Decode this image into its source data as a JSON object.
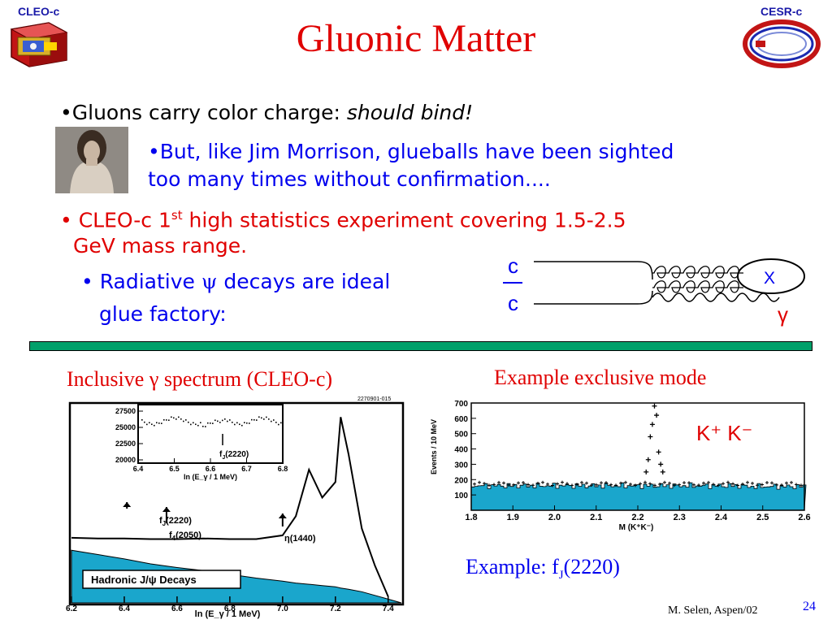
{
  "logos": {
    "left_label": "CLEO-c",
    "right_label": "CESR-c"
  },
  "title": "Gluonic Matter",
  "bullets": {
    "b1_prefix": "•Gluons carry color charge: ",
    "b1_italic": "should bind!",
    "b2_line1": "•But, like Jim Morrison, glueballs have been sighted",
    "b2_line2": "too many times without confirmation....",
    "b3_prefix": "• CLEO-c 1",
    "b3_sup": "st",
    "b3_rest": " high statistics experiment covering 1.5-2.5",
    "b3_line2": "GeV mass range.",
    "b4_prefix": "• Radiative ",
    "b4_greek": "ψ",
    "b4_rest": " decays are ideal",
    "b4_line2": "glue factory:"
  },
  "feynman": {
    "quark": "c",
    "antiquark": "c",
    "product": "X",
    "photon": "γ"
  },
  "left_panel": {
    "caption_prefix": "Inclusive ",
    "caption_greek": "γ",
    "caption_suffix": " spectrum (CLEO-c)",
    "figure_id": "2270901-015",
    "legend_box": "Hadronic J/ψ Decays",
    "labels": {
      "fj_main": "f",
      "fj_main_sub": "J",
      "fj_main_val": "(2220)",
      "f4": "f",
      "f4_sub": "4",
      "f4_val": "(2050)",
      "eta": "η(1440)",
      "inset_fj": "f",
      "inset_fj_sub": "J",
      "inset_fj_val": "(2220)"
    }
  },
  "right_panel": {
    "caption": "Example exclusive mode",
    "mode_label": "K⁺ K⁻",
    "footer_prefix": "Example: f",
    "footer_sub": "J",
    "footer_suffix": "(2220)"
  },
  "footer": {
    "author": "M. Selen, Aspen/02",
    "page": "24"
  },
  "chart_data": [
    {
      "type": "area",
      "xlabel": "ln (E_γ / 1 MeV)",
      "ylabel": "",
      "xlim": [
        6.2,
        7.45
      ],
      "x_ticks": [
        "6.2",
        "6.4",
        "6.6",
        "6.8",
        "7.0",
        "7.2",
        "7.4"
      ],
      "x": [
        6.2,
        6.3,
        6.4,
        6.5,
        6.6,
        6.7,
        6.8,
        6.9,
        7.0,
        7.05,
        7.1,
        7.15,
        7.2,
        7.22,
        7.25,
        7.3,
        7.35,
        7.4
      ],
      "series": [
        {
          "name": "Hadronic J/ψ Decays",
          "values": [
            85,
            78,
            71,
            63,
            57,
            52,
            46,
            40,
            35,
            32,
            30,
            28,
            26,
            24,
            22,
            18,
            12,
            6
          ]
        },
        {
          "name": "",
          "values": [
            105,
            104,
            104,
            103,
            103,
            104,
            103,
            103,
            109,
            140,
            215,
            170,
            195,
            300,
            240,
            120,
            60,
            10
          ]
        }
      ],
      "annotations": [
        "fJ(2220)",
        "f4(2050)",
        "η(1440)"
      ],
      "inset": {
        "x_ticks": [
          "6.4",
          "6.5",
          "6.6",
          "6.7",
          "6.8"
        ],
        "xlabel": "ln (E_γ / 1 MeV)",
        "y_ticks": [
          "27500",
          "25000",
          "22500",
          "20000"
        ],
        "annotation": "fJ(2220)"
      }
    },
    {
      "type": "bar",
      "xlabel": "M (K⁺K⁻)",
      "ylabel": "Events / 10 MeV",
      "xlim": [
        1.8,
        2.6
      ],
      "ylim": [
        0,
        700
      ],
      "x_ticks": [
        "1.8",
        "1.9",
        "2.0",
        "2.1",
        "2.2",
        "2.3",
        "2.4",
        "2.5",
        "2.6"
      ],
      "y_ticks": [
        "100",
        "200",
        "300",
        "400",
        "500",
        "600",
        "700"
      ],
      "background_level": 160,
      "signal_points": [
        {
          "x": 2.22,
          "y": 250
        },
        {
          "x": 2.225,
          "y": 330
        },
        {
          "x": 2.23,
          "y": 480
        },
        {
          "x": 2.235,
          "y": 560
        },
        {
          "x": 2.24,
          "y": 680
        },
        {
          "x": 2.245,
          "y": 620
        },
        {
          "x": 2.25,
          "y": 380
        },
        {
          "x": 2.255,
          "y": 300
        },
        {
          "x": 2.26,
          "y": 250
        }
      ]
    }
  ]
}
